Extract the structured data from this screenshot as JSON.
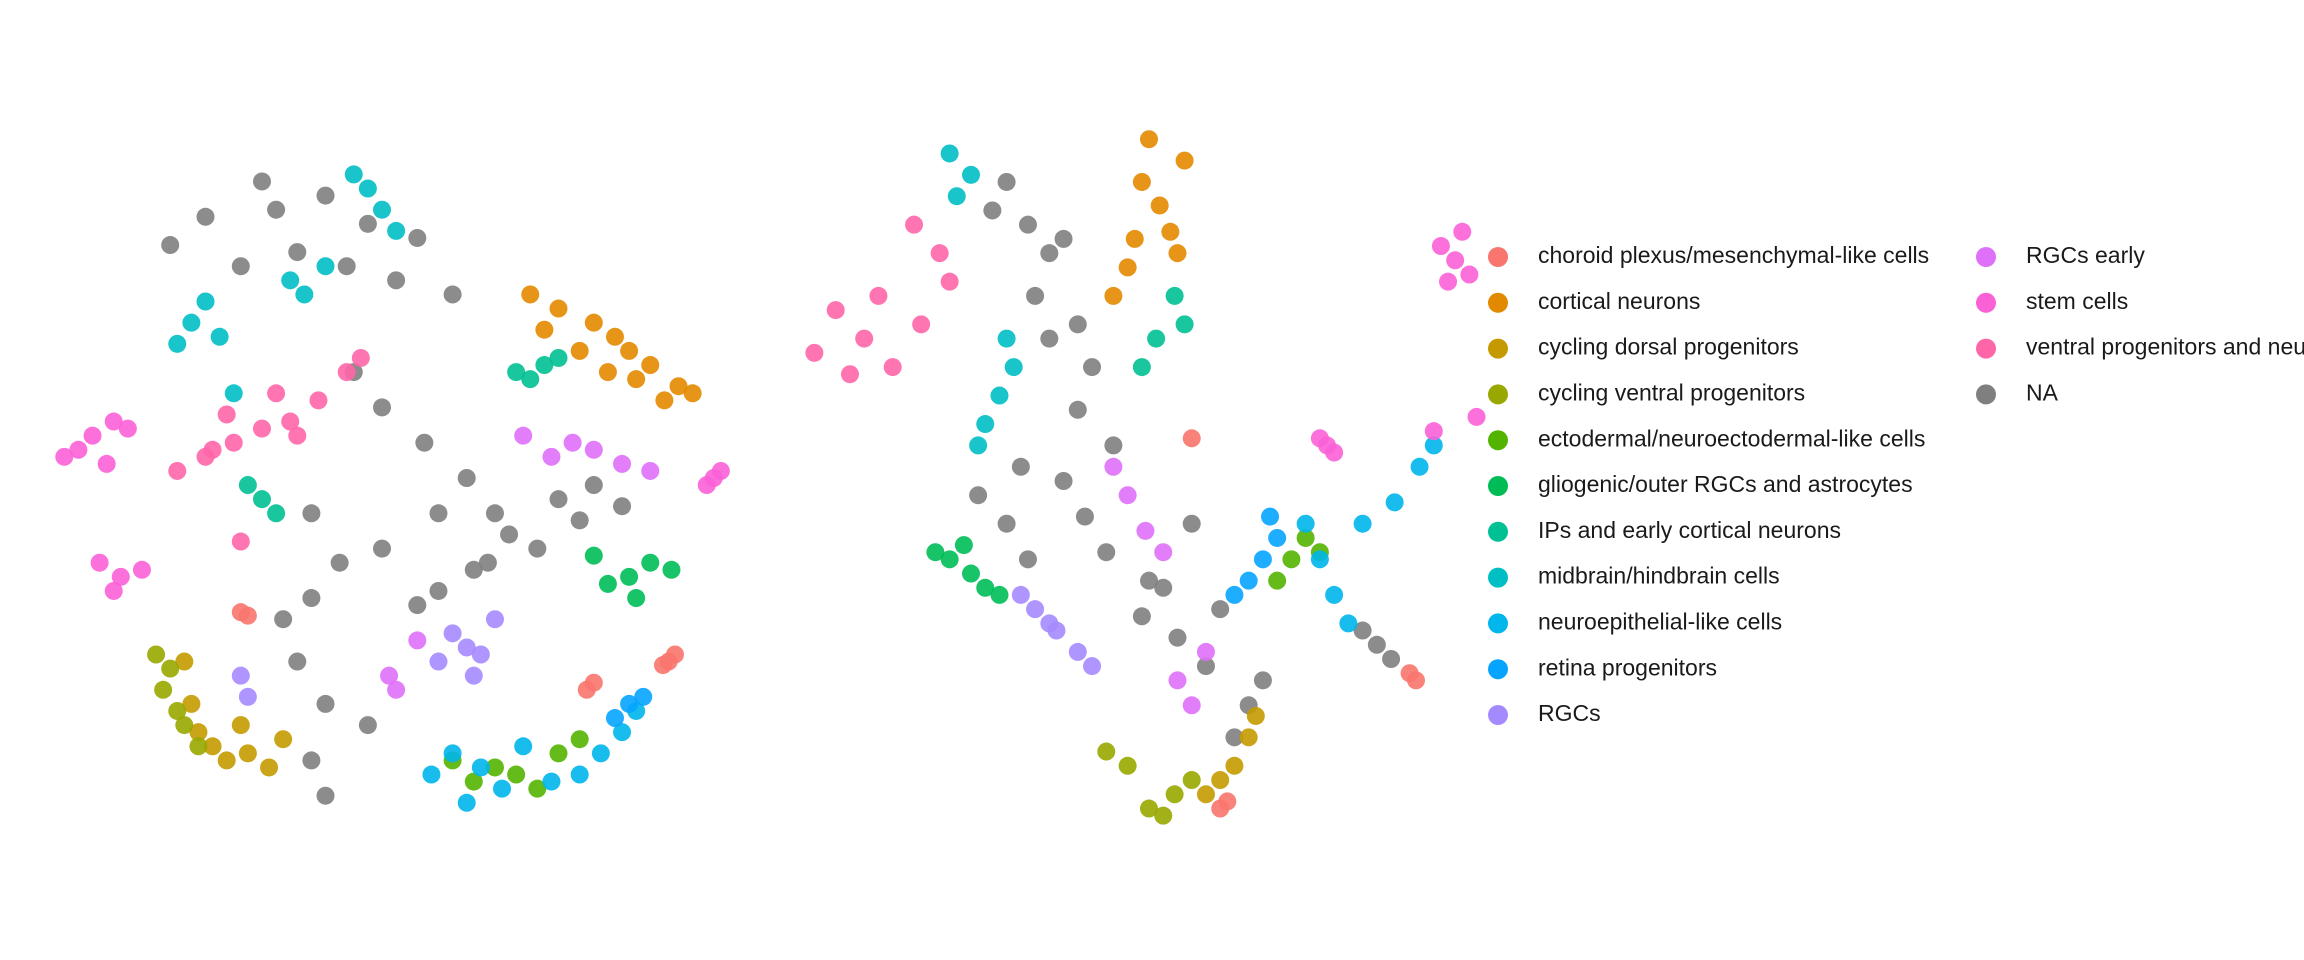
{
  "chart_data": [
    {
      "type": "scatter",
      "xlim": [
        0,
        100
      ],
      "ylim": [
        0,
        100
      ],
      "series": [
        {
          "name": "choroid plexus/mesenchymal-like cells",
          "color": "#F8766D",
          "x": [
            90.6,
            91.5,
            89.8,
            79,
            80,
            30,
            31
          ],
          "y": [
            24,
            25,
            23.5,
            20,
            21,
            31,
            30.5
          ]
        },
        {
          "name": "cortical neurons",
          "color": "#E38900",
          "x": [
            83,
            85,
            80,
            88,
            92,
            90,
            75,
            71,
            73,
            86,
            94,
            78,
            82
          ],
          "y": [
            70,
            68,
            72,
            66,
            63,
            61,
            74,
            76,
            71,
            64,
            62,
            68,
            65
          ]
        },
        {
          "name": "cycling dorsal progenitors",
          "color": "#C49A00",
          "x": [
            23,
            24,
            26,
            28,
            31,
            30,
            22,
            34,
            36
          ],
          "y": [
            18,
            14,
            12,
            10,
            11,
            15,
            24,
            9,
            13
          ]
        },
        {
          "name": "cycling ventral progenitors",
          "color": "#99A800",
          "x": [
            19,
            20,
            21,
            18,
            22,
            24
          ],
          "y": [
            20,
            23,
            17,
            25,
            15,
            12
          ]
        },
        {
          "name": "ectodermal/neuroectodermal-like cells",
          "color": "#53B400",
          "x": [
            63,
            66,
            69,
            75,
            78,
            60,
            72
          ],
          "y": [
            7,
            9,
            8,
            11,
            13,
            10,
            6
          ]
        },
        {
          "name": "gliogenic/outer RGCs and astrocytes",
          "color": "#00BC56",
          "x": [
            85,
            88,
            82,
            91,
            86,
            80
          ],
          "y": [
            36,
            38,
            35,
            37,
            33,
            39
          ]
        },
        {
          "name": "IPs and early cortical neurons",
          "color": "#00C094",
          "x": [
            73,
            71,
            75,
            33,
            35,
            31,
            69
          ],
          "y": [
            66,
            64,
            67,
            47,
            45,
            49,
            65
          ]
        },
        {
          "name": "midbrain/hindbrain cells",
          "color": "#00BFC4",
          "x": [
            23,
            21,
            25,
            27,
            37,
            39,
            48,
            50,
            46,
            52,
            29,
            42
          ],
          "y": [
            72,
            69,
            75,
            70,
            78,
            76,
            91,
            88,
            93,
            85,
            62,
            80
          ]
        },
        {
          "name": "neuroepithelial-like cells",
          "color": "#00B6EB",
          "x": [
            64,
            60,
            67,
            70,
            81,
            84,
            78,
            86,
            62,
            74,
            57
          ],
          "y": [
            9,
            11,
            6,
            12,
            11,
            14,
            8,
            17,
            4,
            7,
            8
          ]
        },
        {
          "name": "retina progenitors",
          "color": "#06A4FF",
          "x": [
            83,
            85,
            87
          ],
          "y": [
            16,
            18,
            19
          ]
        },
        {
          "name": "RGCs",
          "color": "#A58AFF",
          "x": [
            62,
            60,
            64,
            66,
            58,
            63,
            30,
            31
          ],
          "y": [
            26,
            28,
            25,
            30,
            24,
            22,
            22,
            19
          ]
        },
        {
          "name": "RGCs early",
          "color": "#DF70F8",
          "x": [
            70,
            74,
            77,
            80,
            84,
            88,
            51,
            52,
            55
          ],
          "y": [
            56,
            53,
            55,
            54,
            52,
            51,
            22,
            20,
            27
          ]
        },
        {
          "name": "stem cells",
          "color": "#FB61D7",
          "x": [
            9,
            7,
            12,
            11,
            14,
            5,
            13,
            16,
            12,
            10,
            97,
            96,
            98
          ],
          "y": [
            56,
            54,
            58,
            52,
            57,
            53,
            36,
            37,
            34,
            38,
            50,
            49,
            51
          ]
        },
        {
          "name": "ventral progenitors and neu",
          "color": "#FF66A8",
          "x": [
            21,
            25,
            29,
            33,
            37,
            41,
            45,
            28,
            35,
            38,
            26,
            47,
            30
          ],
          "y": [
            51,
            53,
            55,
            57,
            58,
            61,
            65,
            59,
            62,
            56,
            54,
            67,
            41
          ]
        },
        {
          "name": "NA",
          "color": "#7F7F7F",
          "x": [
            48,
            42,
            55,
            38,
            45,
            52,
            60,
            35,
            30,
            58,
            62,
            68,
            75,
            80,
            50,
            40,
            44,
            36,
            38,
            42,
            48,
            55,
            65,
            72,
            78,
            84,
            56,
            50,
            46,
            40,
            40,
            42,
            20,
            25,
            33,
            63,
            58,
            66
          ],
          "y": [
            86,
            90,
            84,
            82,
            80,
            78,
            76,
            88,
            80,
            45,
            50,
            42,
            47,
            49,
            40,
            45,
            38,
            30,
            24,
            18,
            15,
            32,
            38,
            40,
            44,
            46,
            55,
            60,
            65,
            33,
            10,
            5,
            83,
            87,
            92,
            37,
            34,
            45
          ]
        }
      ]
    },
    {
      "type": "scatter",
      "xlim": [
        0,
        100
      ],
      "ylim": [
        0,
        100
      ],
      "series": [
        {
          "x": [
            86.6,
            87.5,
            56,
            60,
            61
          ],
          "y": [
            23,
            22,
            56,
            4,
            5
          ]
        },
        {
          "x": [
            51.5,
            49,
            53,
            55,
            47,
            45,
            50,
            54,
            48
          ],
          "y": [
            88.7,
            92,
            85,
            95,
            80,
            76,
            98,
            82,
            84
          ]
        },
        {
          "x": [
            62,
            64,
            60,
            65,
            58
          ],
          "y": [
            10,
            14,
            8,
            17,
            6
          ]
        },
        {
          "x": [
            53.6,
            47,
            50,
            56,
            44,
            52
          ],
          "y": [
            6,
            10,
            4,
            8,
            12,
            3
          ]
        },
        {
          "x": [
            70,
            72,
            68,
            74
          ],
          "y": [
            39,
            42,
            36,
            40
          ]
        },
        {
          "x": [
            25,
            22,
            27,
            20,
            29,
            24
          ],
          "y": [
            37,
            39,
            35,
            40,
            34,
            41
          ]
        },
        {
          "x": [
            53.6,
            55,
            51,
            49
          ],
          "y": [
            76,
            72,
            70,
            66
          ]
        },
        {
          "x": [
            29,
            27,
            31,
            25,
            23,
            22,
            30,
            26
          ],
          "y": [
            62,
            58,
            66,
            93,
            90,
            96,
            70,
            55
          ]
        },
        {
          "x": [
            74,
            76,
            84.5,
            80,
            88,
            78,
            72,
            90
          ],
          "y": [
            39,
            34,
            47,
            44,
            52,
            30,
            44,
            55
          ]
        },
        {
          "x": [
            66,
            64,
            68,
            62,
            67
          ],
          "y": [
            39,
            36,
            42,
            34,
            45
          ]
        },
        {
          "x": [
            37,
            34,
            40,
            32,
            36,
            42
          ],
          "y": [
            29,
            32,
            26,
            34,
            30,
            24
          ]
        },
        {
          "x": [
            49.5,
            47,
            52,
            45,
            56,
            54,
            58
          ],
          "y": [
            43,
            48,
            40,
            52,
            18.5,
            22,
            26
          ]
        },
        {
          "x": [
            93,
            91,
            95,
            94,
            92,
            90,
            96,
            75,
            76,
            74
          ],
          "y": [
            81,
            83,
            79,
            85,
            78,
            57,
            59,
            55,
            54,
            56
          ]
        },
        {
          "x": [
            10,
            6,
            3,
            14,
            18,
            20.6,
            17,
            22,
            12,
            8
          ],
          "y": [
            70,
            74,
            68,
            66,
            72,
            82,
            86,
            78,
            76,
            65
          ]
        },
        {
          "x": [
            33,
            30,
            36,
            28,
            38,
            34,
            40,
            41,
            38,
            44,
            49,
            52,
            54,
            58,
            64,
            62,
            66,
            60,
            33,
            30,
            40,
            45,
            50,
            56,
            82,
            84,
            80,
            42,
            36,
            26,
            32
          ],
          "y": [
            86,
            92,
            82,
            88,
            84,
            76,
            72,
            45,
            50,
            40,
            31,
            35,
            28,
            24,
            18.5,
            14,
            22,
            32,
            39,
            44,
            60,
            55,
            36,
            44,
            27,
            25,
            29,
            66,
            70,
            48,
            52
          ]
        }
      ]
    }
  ]
}
